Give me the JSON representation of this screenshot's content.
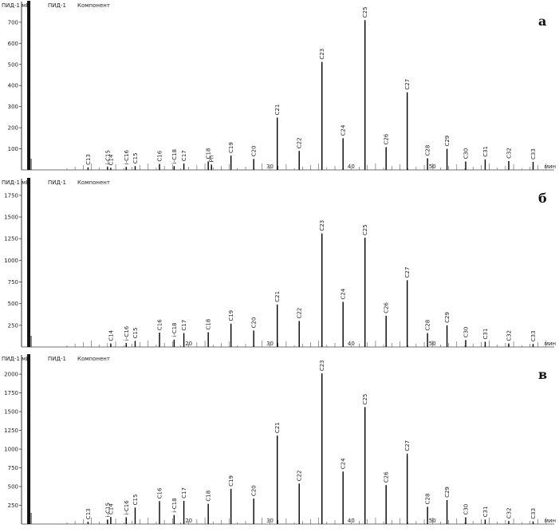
{
  "chart_data": [
    {
      "type": "line",
      "panel_label": "а",
      "header": {
        "left": "ПИД-1 мВ",
        "mid": "ПИД-1",
        "right": "Компонент"
      },
      "ylim": [
        0,
        760
      ],
      "yticks": [
        100,
        200,
        300,
        400,
        500,
        600,
        700
      ],
      "markers": [
        {
          "x": 30,
          "label": "30"
        },
        {
          "x": 40,
          "label": "40"
        },
        {
          "x": 50,
          "label": "50"
        },
        {
          "x": 64.5,
          "label": "мин"
        }
      ],
      "peaks": [
        {
          "label": "C13",
          "x": 7.6,
          "y": 12
        },
        {
          "label": "i-C15",
          "x": 10.0,
          "y": 14
        },
        {
          "label": "C14",
          "x": 10.4,
          "y": 10
        },
        {
          "label": "i-C16",
          "x": 12.3,
          "y": 14
        },
        {
          "label": "C15",
          "x": 13.4,
          "y": 18
        },
        {
          "label": "C16",
          "x": 16.4,
          "y": 28
        },
        {
          "label": "i-C18",
          "x": 18.2,
          "y": 18
        },
        {
          "label": "C17",
          "x": 19.4,
          "y": 30
        },
        {
          "label": "C18",
          "x": 22.4,
          "y": 40
        },
        {
          "label": "Ph",
          "x": 22.8,
          "y": 25
        },
        {
          "label": "C19",
          "x": 25.2,
          "y": 68
        },
        {
          "label": "C20",
          "x": 28.0,
          "y": 52
        },
        {
          "label": "C21",
          "x": 30.9,
          "y": 248
        },
        {
          "label": "C22",
          "x": 33.6,
          "y": 90
        },
        {
          "label": "C23",
          "x": 36.4,
          "y": 512
        },
        {
          "label": "C24",
          "x": 39.0,
          "y": 150
        },
        {
          "label": "C25",
          "x": 41.7,
          "y": 710
        },
        {
          "label": "C26",
          "x": 44.3,
          "y": 108
        },
        {
          "label": "C27",
          "x": 46.9,
          "y": 368
        },
        {
          "label": "C28",
          "x": 49.4,
          "y": 55
        },
        {
          "label": "C29",
          "x": 51.8,
          "y": 100
        },
        {
          "label": "C30",
          "x": 54.1,
          "y": 40
        },
        {
          "label": "C31",
          "x": 56.5,
          "y": 50
        },
        {
          "label": "C32",
          "x": 59.4,
          "y": 42
        },
        {
          "label": "C33",
          "x": 62.4,
          "y": 38
        }
      ]
    },
    {
      "type": "line",
      "panel_label": "б",
      "header": {
        "left": "ПИД-1 мВ",
        "mid": "ПИД-1",
        "right": "Компонент"
      },
      "ylim": [
        0,
        1850
      ],
      "yticks": [
        250,
        500,
        750,
        1000,
        1250,
        1500,
        1750
      ],
      "markers": [
        {
          "x": 20,
          "label": "20"
        },
        {
          "x": 30,
          "label": "30"
        },
        {
          "x": 40,
          "label": "40"
        },
        {
          "x": 50,
          "label": "50"
        },
        {
          "x": 64.5,
          "label": "мин"
        }
      ],
      "peaks": [
        {
          "label": "C14",
          "x": 10.4,
          "y": 40
        },
        {
          "label": "i-C16",
          "x": 12.3,
          "y": 45
        },
        {
          "label": "C15",
          "x": 13.4,
          "y": 70
        },
        {
          "label": "C16",
          "x": 16.4,
          "y": 165
        },
        {
          "label": "i-C18",
          "x": 18.2,
          "y": 85
        },
        {
          "label": "C17",
          "x": 19.4,
          "y": 160
        },
        {
          "label": "C18",
          "x": 22.4,
          "y": 170
        },
        {
          "label": "C19",
          "x": 25.2,
          "y": 270
        },
        {
          "label": "C20",
          "x": 28.0,
          "y": 190
        },
        {
          "label": "C21",
          "x": 30.9,
          "y": 490
        },
        {
          "label": "C22",
          "x": 33.6,
          "y": 300
        },
        {
          "label": "C23",
          "x": 36.4,
          "y": 1310
        },
        {
          "label": "C24",
          "x": 39.0,
          "y": 520
        },
        {
          "label": "C25",
          "x": 41.7,
          "y": 1260
        },
        {
          "label": "C26",
          "x": 44.3,
          "y": 360
        },
        {
          "label": "C27",
          "x": 46.9,
          "y": 770
        },
        {
          "label": "C28",
          "x": 49.4,
          "y": 160
        },
        {
          "label": "C29",
          "x": 51.8,
          "y": 250
        },
        {
          "label": "C30",
          "x": 54.1,
          "y": 80
        },
        {
          "label": "C31",
          "x": 56.5,
          "y": 60
        },
        {
          "label": "C32",
          "x": 59.4,
          "y": 40
        },
        {
          "label": "C33",
          "x": 62.4,
          "y": 35
        }
      ]
    },
    {
      "type": "line",
      "panel_label": "в",
      "header": {
        "left": "ПИД-1 мВ",
        "mid": "ПИД-1",
        "right": "Компонент"
      },
      "ylim": [
        0,
        2150
      ],
      "yticks": [
        250,
        500,
        750,
        1000,
        1250,
        1500,
        1750,
        2000
      ],
      "markers": [
        {
          "x": 20,
          "label": "20"
        },
        {
          "x": 30,
          "label": "30"
        },
        {
          "x": 40,
          "label": "40"
        },
        {
          "x": 50,
          "label": "50"
        },
        {
          "x": 64.5,
          "label": "мин"
        }
      ],
      "peaks": [
        {
          "label": "C13",
          "x": 7.6,
          "y": 30
        },
        {
          "label": "i-C15",
          "x": 10.0,
          "y": 60
        },
        {
          "label": "C14",
          "x": 10.4,
          "y": 95
        },
        {
          "label": "i-C16",
          "x": 12.3,
          "y": 90
        },
        {
          "label": "C15",
          "x": 13.4,
          "y": 220
        },
        {
          "label": "C16",
          "x": 16.4,
          "y": 305
        },
        {
          "label": "i-C18",
          "x": 18.2,
          "y": 120
        },
        {
          "label": "C17",
          "x": 19.4,
          "y": 310
        },
        {
          "label": "C18",
          "x": 22.4,
          "y": 270
        },
        {
          "label": "C19",
          "x": 25.2,
          "y": 470
        },
        {
          "label": "C20",
          "x": 28.0,
          "y": 340
        },
        {
          "label": "C21",
          "x": 30.9,
          "y": 1180
        },
        {
          "label": "C22",
          "x": 33.6,
          "y": 540
        },
        {
          "label": "C23",
          "x": 36.4,
          "y": 2010
        },
        {
          "label": "C24",
          "x": 39.0,
          "y": 700
        },
        {
          "label": "C25",
          "x": 41.7,
          "y": 1560
        },
        {
          "label": "C26",
          "x": 44.3,
          "y": 520
        },
        {
          "label": "C27",
          "x": 46.9,
          "y": 940
        },
        {
          "label": "C28",
          "x": 49.4,
          "y": 230
        },
        {
          "label": "C29",
          "x": 51.8,
          "y": 320
        },
        {
          "label": "C30",
          "x": 54.1,
          "y": 90
        },
        {
          "label": "C31",
          "x": 56.5,
          "y": 60
        },
        {
          "label": "C32",
          "x": 59.4,
          "y": 40
        },
        {
          "label": "C33",
          "x": 62.4,
          "y": 35
        }
      ]
    }
  ]
}
